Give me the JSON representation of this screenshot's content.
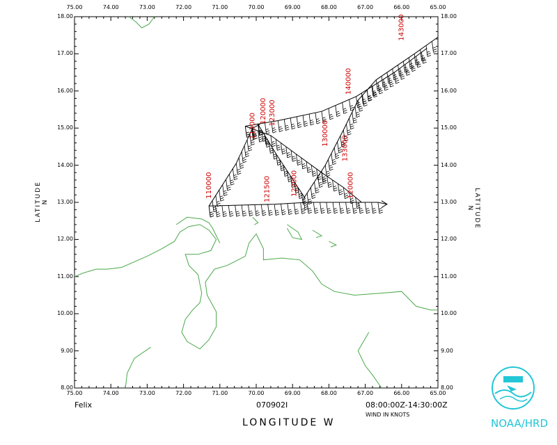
{
  "map": {
    "storm_name": "Felix",
    "flight_id": "070902I",
    "time_range": "08:00:00Z-14:30:00Z",
    "wind_units": "WIND IN KNOTS",
    "x_axis_title": "LONGITUDE W",
    "y_axis_title_left": "LATITUDE N",
    "y_axis_title_right": "LATITUDE N",
    "logo_text": "NOAA/HRD",
    "lon_ticks": [
      "75.00",
      "74.00",
      "73.00",
      "72.00",
      "71.00",
      "70.00",
      "69.00",
      "68.00",
      "67.00",
      "66.00",
      "65.00"
    ],
    "lat_ticks": [
      "18.00",
      "17.00",
      "16.00",
      "15.00",
      "14.00",
      "13.00",
      "12.00",
      "11.00",
      "10.00",
      "9.00",
      "8.00"
    ],
    "lon_range": [
      75,
      65
    ],
    "lat_range": [
      8,
      18
    ],
    "colors": {
      "coast": "#4aa84a",
      "track": "#000000",
      "time_label": "#cc0000",
      "logo": "#22c6d6"
    },
    "time_labels": [
      {
        "text": "110000",
        "lon": 71.25,
        "lat": 13.1
      },
      {
        "text": "113000",
        "lon": 70.05,
        "lat": 14.7
      },
      {
        "text": "120000",
        "lon": 69.75,
        "lat": 15.1
      },
      {
        "text": "123000",
        "lon": 69.5,
        "lat": 15.05
      },
      {
        "text": "130000",
        "lon": 68.05,
        "lat": 14.5
      },
      {
        "text": "133000",
        "lon": 67.5,
        "lat": 14.1
      },
      {
        "text": "140000",
        "lon": 67.4,
        "lat": 15.9
      },
      {
        "text": "143000",
        "lon": 65.95,
        "lat": 17.35
      },
      {
        "text": "120000",
        "lon": 67.35,
        "lat": 13.1
      },
      {
        "text": "121500",
        "lon": 69.65,
        "lat": 13.0
      },
      {
        "text": "122000",
        "lon": 68.9,
        "lat": 13.15
      }
    ],
    "track_segments": [
      [
        [
          71.3,
          12.9
        ],
        [
          70.55,
          14.05
        ],
        [
          70.1,
          15.0
        ],
        [
          69.9,
          15.1
        ]
      ],
      [
        [
          71.3,
          12.9
        ],
        [
          69.5,
          12.95
        ],
        [
          68.6,
          13.0
        ],
        [
          66.65,
          13.0
        ],
        [
          66.4,
          12.95
        ]
      ],
      [
        [
          70.3,
          15.05
        ],
        [
          69.4,
          15.2
        ],
        [
          68.2,
          15.45
        ],
        [
          67.25,
          15.85
        ]
      ],
      [
        [
          70.3,
          15.05
        ],
        [
          69.6,
          14.8
        ],
        [
          68.9,
          14.3
        ],
        [
          68.2,
          13.8
        ],
        [
          67.6,
          13.4
        ],
        [
          67.1,
          13.0
        ]
      ],
      [
        [
          69.95,
          15.1
        ],
        [
          69.45,
          14.3
        ],
        [
          68.95,
          13.55
        ],
        [
          68.65,
          13.1
        ]
      ],
      [
        [
          68.7,
          13.1
        ],
        [
          68.1,
          14.0
        ],
        [
          67.6,
          14.95
        ],
        [
          67.2,
          15.75
        ],
        [
          66.7,
          16.3
        ],
        [
          65.65,
          17.0
        ],
        [
          65.0,
          17.45
        ]
      ],
      [
        [
          67.25,
          15.85
        ],
        [
          66.2,
          16.5
        ],
        [
          65.3,
          17.15
        ]
      ]
    ],
    "coast_lines": [
      [
        [
          75.0,
          11.0
        ],
        [
          74.75,
          11.1
        ],
        [
          74.4,
          11.2
        ],
        [
          74.1,
          11.2
        ],
        [
          73.7,
          11.25
        ],
        [
          73.35,
          11.4
        ],
        [
          73.0,
          11.55
        ],
        [
          72.6,
          11.75
        ],
        [
          72.25,
          11.95
        ],
        [
          72.1,
          12.2
        ],
        [
          71.85,
          12.35
        ],
        [
          71.55,
          12.4
        ],
        [
          71.3,
          12.25
        ],
        [
          71.1,
          12.0
        ],
        [
          71.25,
          11.7
        ],
        [
          71.6,
          11.6
        ],
        [
          71.95,
          11.6
        ],
        [
          71.85,
          11.3
        ],
        [
          71.6,
          11.05
        ],
        [
          71.55,
          10.8
        ],
        [
          71.5,
          10.55
        ],
        [
          71.55,
          10.3
        ],
        [
          71.75,
          10.1
        ],
        [
          71.95,
          9.85
        ],
        [
          72.05,
          9.5
        ],
        [
          71.9,
          9.25
        ],
        [
          71.55,
          9.05
        ],
        [
          71.3,
          9.3
        ],
        [
          71.1,
          9.65
        ],
        [
          71.1,
          10.05
        ],
        [
          71.35,
          10.5
        ],
        [
          71.4,
          10.85
        ],
        [
          71.15,
          11.2
        ],
        [
          70.8,
          11.3
        ],
        [
          70.3,
          11.55
        ],
        [
          70.2,
          11.9
        ],
        [
          70.0,
          12.15
        ],
        [
          69.8,
          11.75
        ],
        [
          69.8,
          11.45
        ],
        [
          69.3,
          11.5
        ],
        [
          68.8,
          11.45
        ],
        [
          68.45,
          11.15
        ],
        [
          68.2,
          10.8
        ],
        [
          67.85,
          10.6
        ],
        [
          67.3,
          10.5
        ],
        [
          66.6,
          10.55
        ],
        [
          66.0,
          10.6
        ],
        [
          65.6,
          10.2
        ],
        [
          65.2,
          10.1
        ],
        [
          65.0,
          10.1
        ]
      ],
      [
        [
          71.0,
          11.9
        ],
        [
          71.2,
          12.3
        ],
        [
          71.3,
          12.45
        ],
        [
          71.5,
          12.55
        ],
        [
          71.9,
          12.6
        ],
        [
          72.2,
          12.4
        ]
      ],
      [
        [
          70.1,
          12.6
        ],
        [
          69.95,
          12.45
        ],
        [
          70.05,
          12.4
        ]
      ],
      [
        [
          69.15,
          12.4
        ],
        [
          68.85,
          12.2
        ],
        [
          68.75,
          12.0
        ],
        [
          69.0,
          12.05
        ],
        [
          69.15,
          12.3
        ]
      ],
      [
        [
          68.45,
          12.25
        ],
        [
          68.2,
          12.1
        ],
        [
          68.35,
          12.05
        ]
      ],
      [
        [
          73.5,
          18.0
        ],
        [
          73.3,
          17.85
        ],
        [
          73.15,
          17.7
        ],
        [
          72.95,
          17.8
        ],
        [
          72.8,
          18.0
        ]
      ],
      [
        [
          68.0,
          11.95
        ],
        [
          67.8,
          11.85
        ],
        [
          67.95,
          11.8
        ]
      ],
      [
        [
          66.55,
          8.0
        ],
        [
          66.8,
          8.35
        ],
        [
          67.0,
          8.6
        ],
        [
          67.2,
          9.0
        ],
        [
          66.9,
          9.5
        ]
      ],
      [
        [
          73.6,
          8.0
        ],
        [
          73.55,
          8.4
        ],
        [
          73.35,
          8.8
        ],
        [
          72.9,
          9.1
        ]
      ]
    ]
  }
}
